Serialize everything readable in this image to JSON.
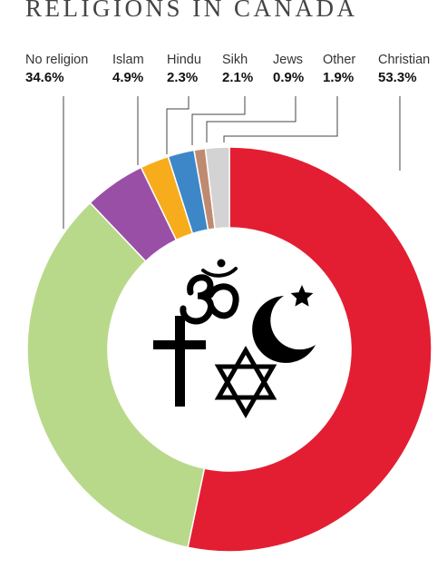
{
  "title": "RELIGIONS IN CANADA",
  "colors": {
    "christian": "#e31e32",
    "no_religion": "#b8d98a",
    "islam": "#9a4fa6",
    "hindu": "#f7ac1c",
    "sikh": "#3d87c8",
    "jews": "#c08a70",
    "other": "#d3d3d3",
    "leader": "#444444",
    "symbols": "#000000"
  },
  "center_symbols": [
    "om-icon",
    "star-crescent-icon",
    "latin-cross-icon",
    "star-of-david-icon"
  ],
  "chart_data": {
    "type": "pie",
    "title": "RELIGIONS IN CANADA",
    "unit": "%",
    "categories": [
      "Christian",
      "No religion",
      "Islam",
      "Hindu",
      "Sikh",
      "Jews",
      "Other"
    ],
    "values": [
      53.3,
      34.6,
      4.9,
      2.3,
      2.1,
      0.9,
      1.9
    ],
    "labels": [
      "53.3%",
      "34.6%",
      "4.9%",
      "2.3%",
      "2.1%",
      "0.9%",
      "1.9%"
    ],
    "style": "donut"
  }
}
